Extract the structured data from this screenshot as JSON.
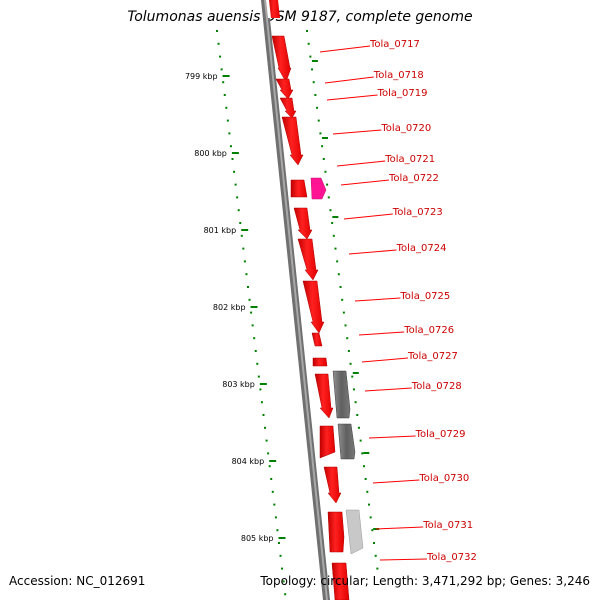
{
  "title": "Tolumonas auensis DSM 9187, complete genome",
  "accession": "Accession: NC_012691",
  "footer": "Topology: circular; Length: 3,471,292 bp; Genes: 3,246",
  "ruler_labels": [
    "799 kbp",
    "800 kbp",
    "801 kbp",
    "802 kbp",
    "803 kbp",
    "804 kbp",
    "805 kbp"
  ],
  "genes": [
    {
      "name": "Tola_0717",
      "color": "#ff0000"
    },
    {
      "name": "Tola_0718",
      "color": "#ff0000"
    },
    {
      "name": "Tola_0719",
      "color": "#ff0000"
    },
    {
      "name": "Tola_0720",
      "color": "#ff0000"
    },
    {
      "name": "Tola_0721",
      "color": "#ff0000"
    },
    {
      "name": "Tola_0722",
      "color": "#ff0000"
    },
    {
      "name": "Tola_0723",
      "color": "#ff0000"
    },
    {
      "name": "Tola_0724",
      "color": "#ff0000"
    },
    {
      "name": "Tola_0725",
      "color": "#ff0000"
    },
    {
      "name": "Tola_0726",
      "color": "#ff0000"
    },
    {
      "name": "Tola_0727",
      "color": "#ff0000"
    },
    {
      "name": "Tola_0728",
      "color": "#ff0000"
    },
    {
      "name": "Tola_0729",
      "color": "#ff0000"
    },
    {
      "name": "Tola_0730",
      "color": "#ff0000"
    },
    {
      "name": "Tola_0731",
      "color": "#ff0000"
    },
    {
      "name": "Tola_0732",
      "color": "#ff0000"
    }
  ],
  "colors": {
    "gene": "#ff0000",
    "gene_pink": "#ff1493",
    "gene_dark_gray": "#5a5a5a",
    "gene_light_gray": "#c8c8c8",
    "backbone": "#808080",
    "dots": "#008000",
    "label_text": "#cc0000"
  }
}
